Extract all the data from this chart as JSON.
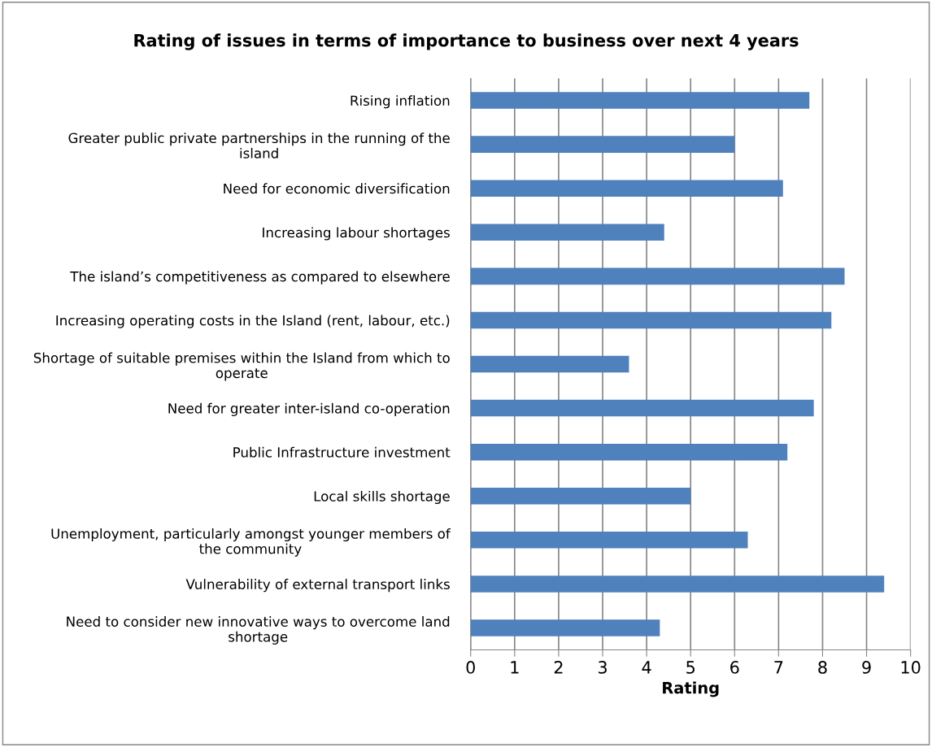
{
  "chart_data": {
    "type": "bar",
    "orientation": "horizontal",
    "title": "Rating of issues in terms of importance to business over next 4 years",
    "xlabel": "Rating",
    "categories": [
      "Rising inflation",
      "Greater public private partnerships in the running of the\nisland",
      "Need for economic diversification",
      "Increasing labour shortages",
      "The island’s competitiveness as compared to elsewhere",
      "Increasing operating costs in the Island (rent, labour, etc.)",
      "Shortage of suitable premises within the Island from which to\noperate",
      "Need for greater inter-island co-operation",
      "Public Infrastructure investment",
      "Local skills shortage",
      "Unemployment, particularly amongst younger members of\nthe community",
      "Vulnerability of external transport links",
      "Need to consider new innovative ways to overcome land\nshortage"
    ],
    "values": [
      7.7,
      6.0,
      7.1,
      4.4,
      8.5,
      8.2,
      3.6,
      7.8,
      7.2,
      5.0,
      6.3,
      9.4,
      4.3
    ],
    "color": "#4f81bd",
    "xlim": [
      0,
      10
    ],
    "xticks": [
      0,
      1,
      2,
      3,
      4,
      5,
      6,
      7,
      8,
      9,
      10
    ],
    "grid": "x",
    "legend": false
  }
}
